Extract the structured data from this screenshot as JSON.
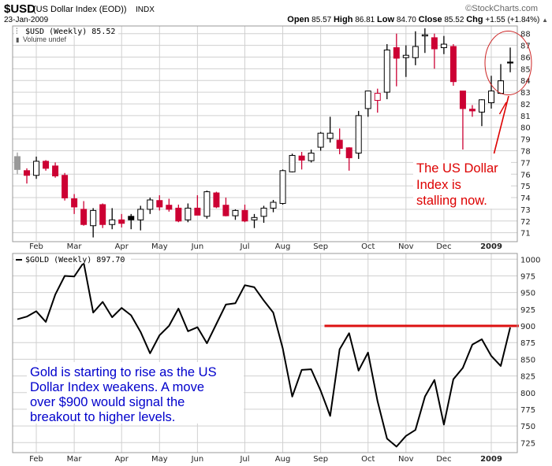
{
  "header": {
    "symbol": "$USD",
    "name": "(US Dollar Index (EOD))",
    "exchange": "INDX",
    "date": "23-Jan-2009",
    "copyright": "©StockCharts.com",
    "quote": {
      "open_label": "Open",
      "open": "85.57",
      "high_label": "High",
      "high": "86.81",
      "low_label": "Low",
      "low": "84.70",
      "close_label": "Close",
      "close": "85.52",
      "chg_label": "Chg",
      "chg": "+1.55 (+1.84%)",
      "chg_arrow": "▲"
    }
  },
  "colors": {
    "up": "#000000",
    "down": "#cc0033",
    "first": "#999999",
    "grid": "#d0d0d0",
    "annotation_red": "#dd0000",
    "annotation_blue": "#0000cc",
    "gold_line": "#000000",
    "level_line": "#dd1111"
  },
  "annotations": {
    "usd_text": [
      "The US Dollar",
      "Index is",
      "stalling now."
    ],
    "gold_text": [
      "Gold is starting to rise as the US",
      "Dollar Index weakens.  A move",
      "over $900 would signal the",
      "breakout to higher levels."
    ],
    "gold_level": 900
  },
  "chart_data": [
    {
      "type": "candlestick",
      "title": "$USD (Weekly) 85.52",
      "subtitle": "Volume undef",
      "x_tick_labels": [
        "Feb",
        "Mar",
        "Apr",
        "May",
        "Jun",
        "Jul",
        "Aug",
        "Sep",
        "Oct",
        "Nov",
        "Dec",
        "2009"
      ],
      "y_ticks": [
        71,
        72,
        73,
        74,
        75,
        76,
        77,
        78,
        79,
        80,
        81,
        82,
        83,
        84,
        85,
        86,
        87,
        88
      ],
      "ylim": [
        70.2,
        88.7
      ],
      "grid": true,
      "dates": [
        "2008-01-25",
        "2008-02-01",
        "2008-02-08",
        "2008-02-15",
        "2008-02-22",
        "2008-02-29",
        "2008-03-07",
        "2008-03-14",
        "2008-03-21",
        "2008-03-28",
        "2008-04-04",
        "2008-04-11",
        "2008-04-18",
        "2008-04-25",
        "2008-05-02",
        "2008-05-09",
        "2008-05-16",
        "2008-05-23",
        "2008-05-30",
        "2008-06-06",
        "2008-06-13",
        "2008-06-20",
        "2008-06-27",
        "2008-07-04",
        "2008-07-11",
        "2008-07-18",
        "2008-07-25",
        "2008-08-01",
        "2008-08-08",
        "2008-08-15",
        "2008-08-22",
        "2008-08-29",
        "2008-09-05",
        "2008-09-12",
        "2008-09-19",
        "2008-09-26",
        "2008-10-03",
        "2008-10-10",
        "2008-10-17",
        "2008-10-24",
        "2008-10-31",
        "2008-11-07",
        "2008-11-14",
        "2008-11-21",
        "2008-11-28",
        "2008-12-05",
        "2008-12-12",
        "2008-12-19",
        "2008-12-26",
        "2009-01-02",
        "2009-01-09",
        "2009-01-16",
        "2009-01-23"
      ],
      "ohlc": [
        [
          77.5,
          77.85,
          76.0,
          76.4
        ],
        [
          76.3,
          76.5,
          75.2,
          75.9
        ],
        [
          75.9,
          77.5,
          75.6,
          77.1
        ],
        [
          77.1,
          77.2,
          76.3,
          76.5
        ],
        [
          76.7,
          77.0,
          75.7,
          75.85
        ],
        [
          75.9,
          76.1,
          73.75,
          73.97
        ],
        [
          73.9,
          74.3,
          72.6,
          73.2
        ],
        [
          73.0,
          73.7,
          71.6,
          71.7
        ],
        [
          71.6,
          73.1,
          70.6,
          72.9
        ],
        [
          73.4,
          73.5,
          71.4,
          71.7
        ],
        [
          71.7,
          73.1,
          71.3,
          72.1
        ],
        [
          72.1,
          72.6,
          71.45,
          71.8
        ],
        [
          72.4,
          72.6,
          71.3,
          72.1
        ],
        [
          72.1,
          73.3,
          71.2,
          73.0
        ],
        [
          73.0,
          74.0,
          72.6,
          73.8
        ],
        [
          73.75,
          74.2,
          72.9,
          73.2
        ],
        [
          73.35,
          73.9,
          72.8,
          73.0
        ],
        [
          73.1,
          73.4,
          71.9,
          72.0
        ],
        [
          72.1,
          73.5,
          71.9,
          73.1
        ],
        [
          73.1,
          74.2,
          72.5,
          72.5
        ],
        [
          72.4,
          74.6,
          72.2,
          74.5
        ],
        [
          74.4,
          74.5,
          73.1,
          73.2
        ],
        [
          73.35,
          74.0,
          72.4,
          72.45
        ],
        [
          72.45,
          73.0,
          72.1,
          72.9
        ],
        [
          72.9,
          73.4,
          71.9,
          72.0
        ],
        [
          72.1,
          72.6,
          71.4,
          72.3
        ],
        [
          72.4,
          73.3,
          71.85,
          73.1
        ],
        [
          73.1,
          73.8,
          72.75,
          73.6
        ],
        [
          73.5,
          76.4,
          73.4,
          76.3
        ],
        [
          76.2,
          77.75,
          76.15,
          77.6
        ],
        [
          77.55,
          77.9,
          76.4,
          77.2
        ],
        [
          77.15,
          78.1,
          77.0,
          77.8
        ],
        [
          78.3,
          79.6,
          78.0,
          79.5
        ],
        [
          79.05,
          80.9,
          78.7,
          79.5
        ],
        [
          78.9,
          79.9,
          77.7,
          78.2
        ],
        [
          78.25,
          78.3,
          76.3,
          77.4
        ],
        [
          77.8,
          81.4,
          77.3,
          81.0
        ],
        [
          81.6,
          83.1,
          80.9,
          83.1
        ],
        [
          82.3,
          83.3,
          81.25,
          82.9
        ],
        [
          83.0,
          87.1,
          82.4,
          86.6
        ],
        [
          86.8,
          88.0,
          83.5,
          85.9
        ],
        [
          85.95,
          87.0,
          84.3,
          86.15
        ],
        [
          85.95,
          88.2,
          85.3,
          86.9
        ],
        [
          87.8,
          88.45,
          86.35,
          87.9
        ],
        [
          87.65,
          88.0,
          85.0,
          86.7
        ],
        [
          86.8,
          87.8,
          86.25,
          87.1
        ],
        [
          86.9,
          87.1,
          83.55,
          83.9
        ],
        [
          83.1,
          83.1,
          78.1,
          81.6
        ],
        [
          81.55,
          81.9,
          80.9,
          81.4
        ],
        [
          81.3,
          82.4,
          80.1,
          82.35
        ],
        [
          82.1,
          84.4,
          81.6,
          83.1
        ],
        [
          82.9,
          85.4,
          82.85,
          83.97
        ],
        [
          85.57,
          86.81,
          84.7,
          85.52
        ]
      ]
    },
    {
      "type": "line",
      "title": "$GOLD (Weekly) 897.70",
      "x_tick_labels": [
        "Feb",
        "Mar",
        "Apr",
        "May",
        "Jun",
        "Jul",
        "Aug",
        "Sep",
        "Oct",
        "Nov",
        "Dec",
        "2009"
      ],
      "y_ticks": [
        725,
        750,
        775,
        800,
        825,
        850,
        875,
        900,
        925,
        950,
        975,
        1000
      ],
      "ylim": [
        712,
        1004
      ],
      "grid": true,
      "values": [
        910,
        914,
        922,
        906,
        947,
        975,
        974,
        995,
        920,
        936,
        913,
        927,
        916,
        891,
        859,
        886,
        900,
        926,
        892,
        898,
        874,
        903,
        932,
        934,
        961,
        958,
        938,
        920,
        866,
        794,
        834,
        835,
        803,
        765,
        865,
        889,
        833,
        860,
        787,
        731,
        719,
        735,
        744,
        794,
        819,
        752,
        820,
        837,
        872,
        880,
        855,
        840,
        897.7
      ]
    }
  ]
}
